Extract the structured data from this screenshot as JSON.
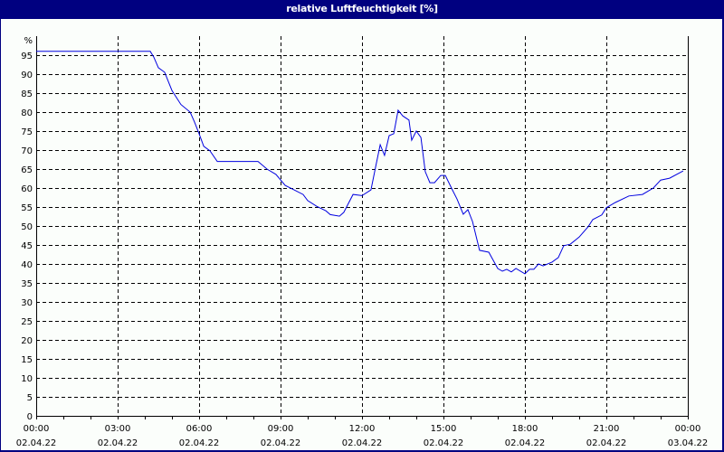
{
  "window": {
    "title": "relative Luftfeuchtigkeit [%]"
  },
  "colors": {
    "frame": "#000080",
    "background": "#fbfefb",
    "line": "#0000e0",
    "grid": "#000000"
  },
  "chart_data": {
    "type": "line",
    "title": "relative Luftfeuchtigkeit [%]",
    "xlabel": "",
    "ylabel": "%",
    "ylim": [
      0,
      100
    ],
    "xlim_hours": [
      0,
      24
    ],
    "grid": true,
    "legend": null,
    "y_ticks": [
      0,
      5,
      10,
      15,
      20,
      25,
      30,
      35,
      40,
      45,
      50,
      55,
      60,
      65,
      70,
      75,
      80,
      85,
      90,
      95
    ],
    "y_top_label": "%",
    "x_ticks": [
      {
        "time": "00:00",
        "date": "02.04.22"
      },
      {
        "time": "03:00",
        "date": "02.04.22"
      },
      {
        "time": "06:00",
        "date": "02.04.22"
      },
      {
        "time": "09:00",
        "date": "02.04.22"
      },
      {
        "time": "12:00",
        "date": "02.04.22"
      },
      {
        "time": "15:00",
        "date": "02.04.22"
      },
      {
        "time": "18:00",
        "date": "02.04.22"
      },
      {
        "time": "21:00",
        "date": "02.04.22"
      },
      {
        "time": "00:00",
        "date": "03.04.22"
      }
    ],
    "series": [
      {
        "name": "relative Luftfeuchtigkeit",
        "x_hours": [
          0,
          4.2,
          4.33,
          4.5,
          4.73,
          5.0,
          5.33,
          5.67,
          5.83,
          6.0,
          6.17,
          6.4,
          6.67,
          8.17,
          8.5,
          8.83,
          9.17,
          9.5,
          9.83,
          10.0,
          10.33,
          10.67,
          10.83,
          11.17,
          11.33,
          11.67,
          12.0,
          12.33,
          12.5,
          12.67,
          12.83,
          13.0,
          13.17,
          13.33,
          13.5,
          13.73,
          13.83,
          14.0,
          14.17,
          14.33,
          14.5,
          14.67,
          14.9,
          15.07,
          15.33,
          15.5,
          15.73,
          15.9,
          16.07,
          16.33,
          16.67,
          16.83,
          17.0,
          17.17,
          17.33,
          17.5,
          17.67,
          18.0,
          18.17,
          18.33,
          18.5,
          18.67,
          19.0,
          19.23,
          19.43,
          19.67,
          20.0,
          20.33,
          20.5,
          20.83,
          21.0,
          21.33,
          21.83,
          22.33,
          22.73,
          23.0,
          23.33,
          23.83
        ],
        "values": [
          96,
          96,
          94.5,
          91.7,
          90.5,
          85.7,
          82,
          80,
          77.4,
          74.3,
          71,
          69.8,
          67,
          67,
          65,
          63.6,
          60.7,
          59.5,
          58.3,
          56.7,
          55.2,
          54,
          53,
          52.6,
          53.6,
          58.3,
          58,
          59.5,
          65.5,
          71.4,
          68.6,
          73.8,
          74.3,
          80.5,
          79,
          77.9,
          72.6,
          75,
          73.3,
          64.3,
          61.4,
          61.4,
          63.3,
          63.3,
          59.5,
          57.1,
          53.1,
          54.3,
          51.2,
          43.6,
          43.1,
          41,
          38.8,
          38.1,
          38.6,
          37.9,
          38.8,
          37.4,
          38.6,
          38.6,
          40,
          39.5,
          40.5,
          41.7,
          44.8,
          45.2,
          47.1,
          49.8,
          51.7,
          52.9,
          54.8,
          56.2,
          57.9,
          58.3,
          60,
          62.1,
          62.6,
          64.5
        ]
      }
    ]
  }
}
